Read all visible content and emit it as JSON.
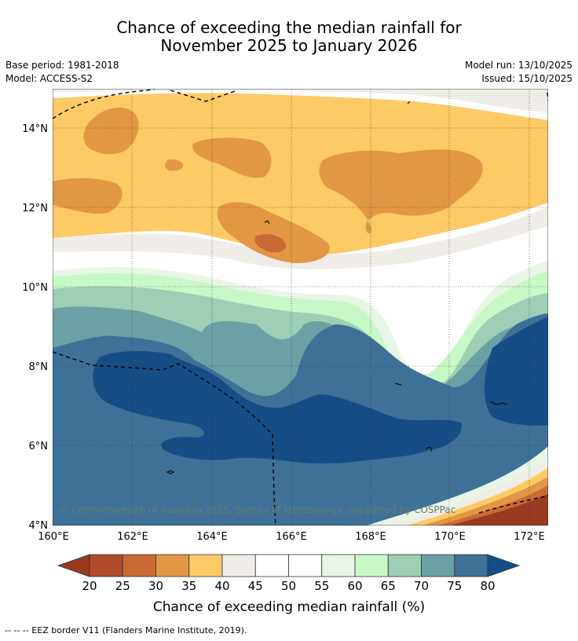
{
  "title": {
    "line1": "Chance of exceeding the median rainfall for",
    "line2": "November 2025 to January 2026"
  },
  "meta": {
    "base_period": "Base period: 1981-2018",
    "model": "Model: ACCESS-S2",
    "model_run": "Model run: 13/10/2025",
    "issued": "Issued: 15/10/2025"
  },
  "map": {
    "copyright": "© Commonwealth of Australia 2025, Bureau of Meteorology, supported by COSPPac",
    "lon_labels": [
      "160°E",
      "162°E",
      "164°E",
      "166°E",
      "168°E",
      "170°E",
      "172°E"
    ],
    "lat_labels": [
      "14°N",
      "12°N",
      "10°N",
      "8°N",
      "6°N",
      "4°N"
    ],
    "extent": {
      "lon_min": 160,
      "lon_max": 172.5,
      "lat_min": 4,
      "lat_max": 15
    },
    "border_style": "dashed black",
    "colors": {
      "lt20": "#9a3a20",
      "c20_25": "#b04b29",
      "c25_30": "#c96a36",
      "c30_35": "#e29745",
      "c35_40": "#fdca66",
      "c40_45": "#f0ede8",
      "c45_55": "#ffffff",
      "c55_60": "#e9f5e6",
      "c60_65": "#c7f8c7",
      "c65_70": "#9ccfb5",
      "c70_75": "#6aa1a4",
      "c75_80": "#3d7198",
      "gt80": "#154d86"
    }
  },
  "colorbar": {
    "ticks": [
      "20",
      "25",
      "30",
      "35",
      "40",
      "45",
      "50",
      "55",
      "60",
      "65",
      "70",
      "75",
      "80"
    ],
    "label": "Chance of exceeding median rainfall (%)",
    "colors": [
      "#c96a36",
      "#b04b29",
      "#c96a36",
      "#e29745",
      "#fdca66",
      "#f0ede8",
      "#ffffff",
      "#ffffff",
      "#e9f5e6",
      "#c7f8c7",
      "#9ccfb5",
      "#6aa1a4",
      "#3d7198"
    ],
    "low_arrow_color": "#9a3a20",
    "high_arrow_color": "#154d86"
  },
  "footnote": "-- -- -- EEZ border V11 (Flanders Marine Institute, 2019)."
}
